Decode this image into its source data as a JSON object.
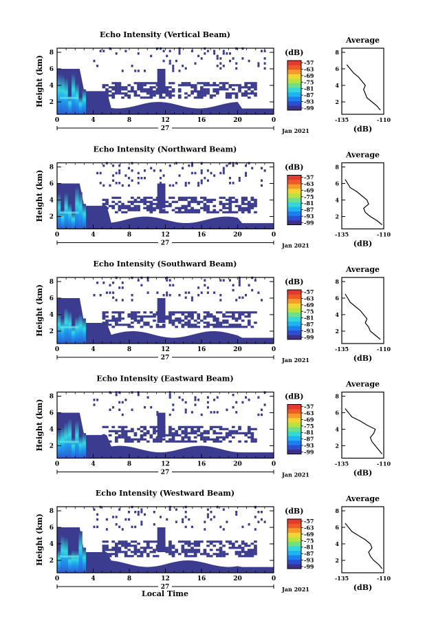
{
  "colors": {
    "echo_low": "#3b3b8f",
    "scale": [
      "#3d2f8a",
      "#2a4fd0",
      "#1c7ff0",
      "#1fb3f0",
      "#33d8d8",
      "#6ee08a",
      "#b7e23f",
      "#f0d630",
      "#f59b2a",
      "#ef5b24",
      "#e23a2f"
    ]
  },
  "panels": [
    {
      "title": "Echo Intensity (Vertical Beam)"
    },
    {
      "title": "Echo Intensity (Northward Beam)"
    },
    {
      "title": "Echo Intensity (Southward Beam)"
    },
    {
      "title": "Echo Intensity (Eastward Beam)"
    },
    {
      "title": "Echo Intensity (Westward Beam)"
    }
  ],
  "common": {
    "ylabel": "Height (km)",
    "y_ticks": [
      "2",
      "4",
      "6",
      "8"
    ],
    "x_ticks": [
      "0",
      "4",
      "8",
      "12",
      "16",
      "20",
      "0"
    ],
    "day_label": "27",
    "date_label": "Jan 2021",
    "cb_unit": "(dB)",
    "cb_ticks": [
      "-57",
      "-63",
      "-69",
      "-75",
      "-81",
      "-87",
      "-93",
      "-99"
    ],
    "avg_title": "Average",
    "avg_x_ticks": [
      "-135",
      "-110"
    ],
    "avg_y_ticks": [
      "2",
      "4",
      "6",
      "8"
    ],
    "avg_xlabel": "(dB)",
    "xlabel": "Local Time"
  },
  "chart_data": [
    {
      "type": "heatmap",
      "title": "Echo Intensity (Vertical Beam)",
      "xlabel": "",
      "ylabel": "Height (km)",
      "xlim": [
        0,
        24
      ],
      "ylim": [
        0.5,
        8.5
      ],
      "colorbar": {
        "label": "(dB)",
        "range": [
          -99,
          -57
        ]
      },
      "series": [
        {
          "name": "Average",
          "x": [
            -112,
            -114,
            -117,
            -120,
            -121,
            -122,
            -121,
            -123,
            -125,
            -128,
            -132
          ],
          "y": [
            1,
            1.5,
            2,
            2.5,
            3,
            3.5,
            4,
            4.5,
            5,
            5.5,
            6.5
          ]
        }
      ]
    },
    {
      "type": "heatmap",
      "title": "Echo Intensity (Northward Beam)",
      "xlabel": "",
      "ylabel": "Height (km)",
      "xlim": [
        0,
        24
      ],
      "ylim": [
        0.5,
        8.5
      ],
      "colorbar": {
        "label": "(dB)",
        "range": [
          -99,
          -57
        ]
      },
      "series": [
        {
          "name": "Average",
          "x": [
            -111,
            -114,
            -118,
            -121,
            -122,
            -119,
            -120,
            -123,
            -126,
            -130,
            -133
          ],
          "y": [
            1,
            1.5,
            2,
            2.5,
            3,
            3.5,
            4,
            4.5,
            5,
            5.5,
            6.5
          ]
        }
      ]
    },
    {
      "type": "heatmap",
      "title": "Echo Intensity (Southward Beam)",
      "xlabel": "",
      "ylabel": "Height (km)",
      "xlim": [
        0,
        24
      ],
      "ylim": [
        0.5,
        8.5
      ],
      "colorbar": {
        "label": "(dB)",
        "range": [
          -99,
          -57
        ]
      },
      "series": [
        {
          "name": "Average",
          "x": [
            -112,
            -115,
            -118,
            -119,
            -121,
            -120,
            -122,
            -124,
            -127,
            -130,
            -133
          ],
          "y": [
            1,
            1.5,
            2,
            2.5,
            3,
            3.5,
            4,
            4.5,
            5,
            5.5,
            6.5
          ]
        }
      ]
    },
    {
      "type": "heatmap",
      "title": "Echo Intensity (Eastward Beam)",
      "xlabel": "",
      "ylabel": "Height (km)",
      "xlim": [
        0,
        24
      ],
      "ylim": [
        0.5,
        8.5
      ],
      "colorbar": {
        "label": "(dB)",
        "range": [
          -99,
          -57
        ]
      },
      "series": [
        {
          "name": "Average",
          "x": [
            -111,
            -113,
            -115,
            -117,
            -118,
            -116,
            -115,
            -120,
            -124,
            -129,
            -133
          ],
          "y": [
            1,
            1.5,
            2,
            2.5,
            3,
            3.5,
            4,
            4.5,
            5,
            5.5,
            6.5
          ]
        }
      ]
    },
    {
      "type": "heatmap",
      "title": "Echo Intensity (Westward Beam)",
      "xlabel": "Local Time",
      "ylabel": "Height (km)",
      "xlim": [
        0,
        24
      ],
      "ylim": [
        0.5,
        8.5
      ],
      "colorbar": {
        "label": "(dB)",
        "range": [
          -99,
          -57
        ]
      },
      "series": [
        {
          "name": "Average",
          "x": [
            -111,
            -113,
            -116,
            -118,
            -119,
            -117,
            -118,
            -121,
            -125,
            -129,
            -133
          ],
          "y": [
            1,
            1.5,
            2,
            2.5,
            3,
            3.5,
            4,
            4.5,
            5,
            5.5,
            6.5
          ]
        }
      ]
    }
  ]
}
